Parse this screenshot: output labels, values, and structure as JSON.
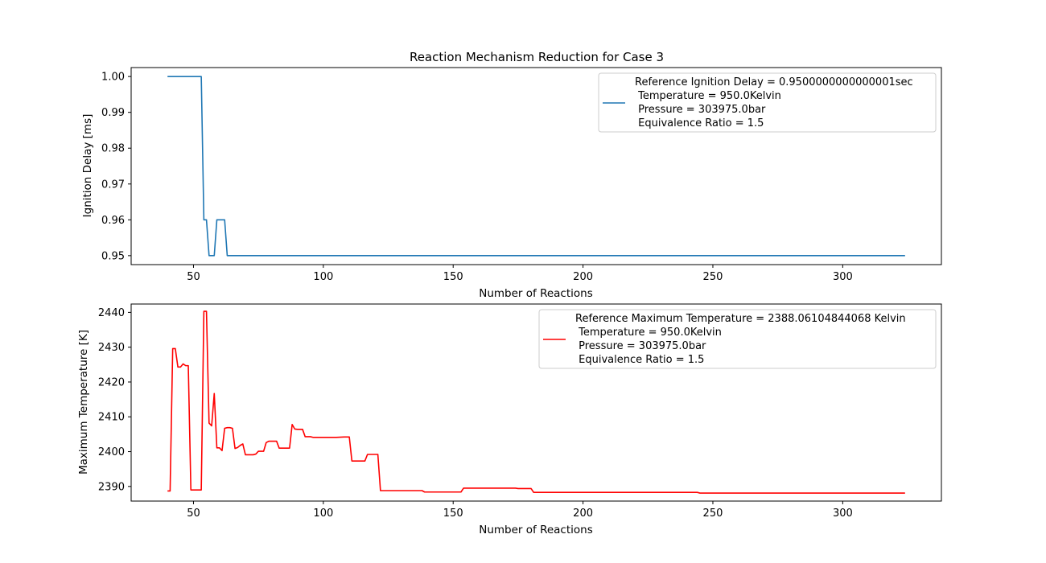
{
  "chart_data": [
    {
      "type": "line",
      "title": "Reaction Mechanism Reduction for Case 3",
      "xlabel": "Number of Reactions",
      "ylabel": "Ignition Delay [ms]",
      "xlim": [
        26,
        338
      ],
      "ylim": [
        0.9475,
        1.0025
      ],
      "xticks": [
        50,
        100,
        150,
        200,
        250,
        300
      ],
      "yticks": [
        0.95,
        0.96,
        0.97,
        0.98,
        0.99,
        1.0
      ],
      "ytick_labels": [
        "0.95",
        "0.96",
        "0.97",
        "0.98",
        "0.99",
        "1.00"
      ],
      "legend_location": "top-right",
      "series": [
        {
          "name": "Reference Ignition Delay = 0.9500000000000001sec\n Temperature = 950.0Kelvin\n Pressure = 303975.0bar\n Equivalence Ratio = 1.5",
          "color": "#1f77b4",
          "x": [
            40,
            53,
            54,
            55,
            56,
            57,
            58,
            59,
            60,
            61,
            62,
            63,
            64,
            100,
            150,
            200,
            250,
            300,
            324
          ],
          "y": [
            1.0,
            1.0,
            0.96,
            0.96,
            0.95,
            0.95,
            0.95,
            0.96,
            0.96,
            0.96,
            0.96,
            0.95,
            0.95,
            0.95,
            0.95,
            0.95,
            0.95,
            0.95,
            0.95
          ]
        }
      ]
    },
    {
      "type": "line",
      "xlabel": "Number of Reactions",
      "ylabel": "Maximum Temperature [K]",
      "xlim": [
        26,
        338
      ],
      "ylim": [
        2385.8,
        2442.4
      ],
      "xticks": [
        50,
        100,
        150,
        200,
        250,
        300
      ],
      "yticks": [
        2390,
        2400,
        2410,
        2420,
        2430,
        2440
      ],
      "ytick_labels": [
        "2390",
        "2400",
        "2410",
        "2420",
        "2430",
        "2440"
      ],
      "legend_location": "top-right",
      "series": [
        {
          "name": "Reference Maximum Temperature = 2388.06104844068 Kelvin\n Temperature = 950.0Kelvin\n Pressure = 303975.0bar\n Equivalence Ratio = 1.5",
          "color": "#ff0000",
          "x": [
            40,
            41,
            42,
            43,
            44,
            45,
            46,
            47,
            48,
            49,
            50,
            51,
            52,
            53,
            54,
            55,
            56,
            57,
            58,
            59,
            60,
            61,
            62,
            63,
            64,
            65,
            66,
            67,
            68,
            69,
            70,
            71,
            72,
            73,
            74,
            75,
            76,
            77,
            78,
            79,
            80,
            81,
            82,
            83,
            84,
            85,
            86,
            87,
            88,
            89,
            90,
            91,
            92,
            93,
            94,
            95,
            96,
            100,
            105,
            108,
            109,
            110,
            111,
            112,
            113,
            114,
            115,
            116,
            117,
            118,
            119,
            120,
            121,
            122,
            123,
            130,
            138,
            139,
            140,
            150,
            153,
            154,
            160,
            170,
            174,
            175,
            180,
            181,
            190,
            200,
            210,
            220,
            230,
            240,
            244,
            245,
            250,
            260,
            270,
            280,
            290,
            300,
            310,
            320,
            324
          ],
          "y": [
            2388.7,
            2388.7,
            2429.6,
            2429.6,
            2424.3,
            2424.3,
            2425.2,
            2424.7,
            2424.7,
            2389.0,
            2389.0,
            2389.0,
            2389.0,
            2389.0,
            2440.3,
            2440.3,
            2408.2,
            2407.4,
            2416.7,
            2401.1,
            2401.1,
            2400.3,
            2406.7,
            2406.9,
            2406.9,
            2406.7,
            2400.9,
            2401.2,
            2401.8,
            2402.2,
            2399.1,
            2399.1,
            2399.1,
            2399.1,
            2399.3,
            2400.1,
            2400.1,
            2400.1,
            2402.6,
            2403.0,
            2403.0,
            2403.0,
            2403.0,
            2401.0,
            2401.0,
            2401.0,
            2401.0,
            2401.0,
            2407.8,
            2406.5,
            2406.4,
            2406.4,
            2406.4,
            2404.3,
            2404.3,
            2404.3,
            2404.1,
            2404.1,
            2404.1,
            2404.2,
            2404.2,
            2404.2,
            2397.3,
            2397.3,
            2397.3,
            2397.3,
            2397.3,
            2397.3,
            2399.2,
            2399.2,
            2399.2,
            2399.2,
            2399.2,
            2388.8,
            2388.8,
            2388.8,
            2388.8,
            2388.4,
            2388.4,
            2388.4,
            2388.4,
            2389.5,
            2389.5,
            2389.5,
            2389.5,
            2389.4,
            2389.4,
            2388.3,
            2388.3,
            2388.3,
            2388.3,
            2388.3,
            2388.3,
            2388.3,
            2388.3,
            2388.1,
            2388.1,
            2388.1,
            2388.1,
            2388.1,
            2388.1,
            2388.1,
            2388.1,
            2388.1,
            2388.1
          ]
        }
      ]
    }
  ]
}
